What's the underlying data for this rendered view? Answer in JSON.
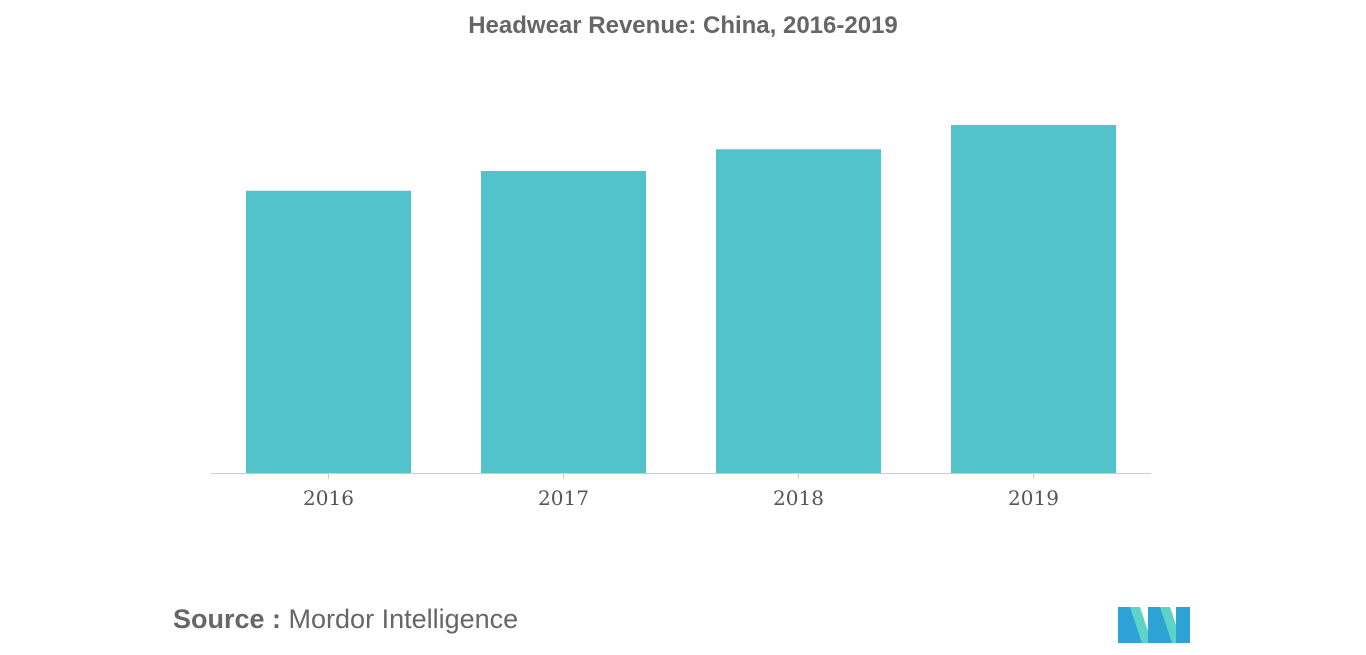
{
  "chart_data": {
    "type": "bar",
    "title": "Headwear Revenue: China, 2016-2019",
    "categories": [
      "2016",
      "2017",
      "2018",
      "2019"
    ],
    "values": [
      100,
      107,
      114.7,
      123.3
    ],
    "xlabel": "",
    "ylabel": "",
    "ylim": [
      0,
      123.3
    ],
    "grid": false,
    "legend": "none",
    "bar_color": "#52c3ca",
    "axis_color": "#cccccc"
  },
  "source": {
    "label": "Source :",
    "text": "Mordor Intelligence"
  },
  "logo": {
    "icon": "mordor-intelligence-logo",
    "colors": [
      "#2ea3d5",
      "#5fd3c9"
    ]
  }
}
